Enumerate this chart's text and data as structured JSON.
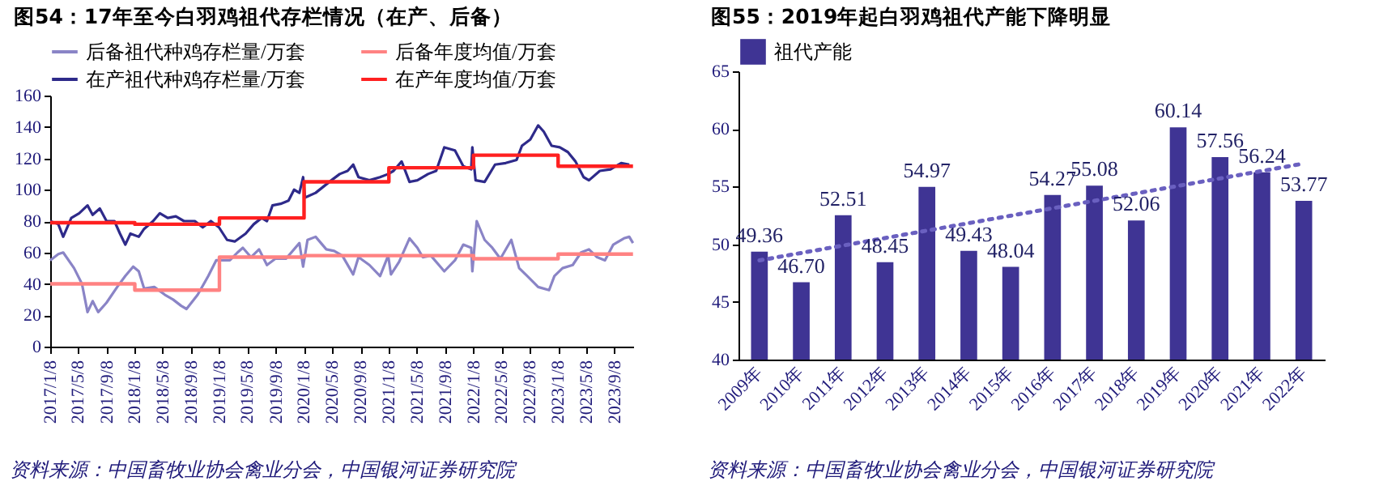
{
  "chart_data": [
    {
      "type": "line",
      "title": "图54：17年至今白羽鸡祖代存栏情况（在产、后备）",
      "annotations": [
        "资料来源：中国畜牧业协会禽业分会，中国银河证券研究院"
      ],
      "xlim": [
        "2017-01-08",
        "2023-11-28"
      ],
      "xticks": [
        {
          "value": "2017-01-08",
          "label": "2017/1/8"
        },
        {
          "value": "2017-05-08",
          "label": "2017/5/8"
        },
        {
          "value": "2017-09-08",
          "label": "2017/9/8"
        },
        {
          "value": "2018-01-08",
          "label": "2018/1/8"
        },
        {
          "value": "2018-05-08",
          "label": "2018/5/8"
        },
        {
          "value": "2018-09-08",
          "label": "2018/9/8"
        },
        {
          "value": "2019-01-08",
          "label": "2019/1/8"
        },
        {
          "value": "2019-05-08",
          "label": "2019/5/8"
        },
        {
          "value": "2019-09-08",
          "label": "2019/9/8"
        },
        {
          "value": "2020-01-08",
          "label": "2020/1/8"
        },
        {
          "value": "2020-05-08",
          "label": "2020/5/8"
        },
        {
          "value": "2020-09-08",
          "label": "2020/9/8"
        },
        {
          "value": "2021-01-08",
          "label": "2021/1/8"
        },
        {
          "value": "2021-05-08",
          "label": "2021/5/8"
        },
        {
          "value": "2021-09-08",
          "label": "2021/9/8"
        },
        {
          "value": "2022-01-08",
          "label": "2022/1/8"
        },
        {
          "value": "2022-05-08",
          "label": "2022/5/8"
        },
        {
          "value": "2022-09-08",
          "label": "2022/9/8"
        },
        {
          "value": "2023-01-08",
          "label": "2023/1/8"
        },
        {
          "value": "2023-05-08",
          "label": "2023/5/8"
        },
        {
          "value": "2023-09-08",
          "label": "2023/9/8"
        }
      ],
      "ylim": [
        0,
        160
      ],
      "yticks": [
        0,
        20,
        40,
        60,
        80,
        100,
        120,
        140,
        160
      ],
      "grid": false,
      "legend": "top",
      "series": [
        {
          "name": "后备祖代种鸡存栏量/万套",
          "color": "#8a84c6",
          "x": [
            "2017-01-08",
            "2017-02-12",
            "2017-03-05",
            "2017-04-21",
            "2017-05-25",
            "2017-06-18",
            "2017-07-10",
            "2017-08-03",
            "2017-09-08",
            "2017-10-24",
            "2017-11-28",
            "2018-01-01",
            "2018-01-25",
            "2018-02-17",
            "2018-04-02",
            "2018-05-18",
            "2018-06-22",
            "2018-07-27",
            "2018-08-19",
            "2018-10-06",
            "2018-11-21",
            "2018-12-25",
            "2019-01-18",
            "2019-02-22",
            "2019-03-27",
            "2019-04-19",
            "2019-05-24",
            "2019-06-28",
            "2019-08-01",
            "2019-09-06",
            "2019-10-22",
            "2019-12-19",
            "2020-01-04",
            "2020-01-23",
            "2020-02-27",
            "2020-04-13",
            "2020-05-17",
            "2020-06-21",
            "2020-08-07",
            "2020-08-30",
            "2020-10-16",
            "2020-12-01",
            "2021-01-05",
            "2021-01-17",
            "2021-02-21",
            "2021-04-07",
            "2021-05-11",
            "2021-06-03",
            "2021-07-08",
            "2021-09-04",
            "2021-10-20",
            "2021-11-25",
            "2021-12-29",
            "2022-01-03",
            "2022-01-22",
            "2022-02-25",
            "2022-03-30",
            "2022-05-04",
            "2022-06-20",
            "2022-07-24",
            "2022-08-28",
            "2022-10-14",
            "2022-11-30",
            "2022-12-23",
            "2023-01-27",
            "2023-03-12",
            "2023-04-17",
            "2023-05-21",
            "2023-06-25",
            "2023-07-29",
            "2023-09-03",
            "2023-10-19",
            "2023-11-11",
            "2023-11-27"
          ],
          "values": [
            55,
            59,
            60,
            50,
            40,
            22,
            29,
            22,
            28,
            38,
            45,
            51,
            48,
            37,
            38,
            33,
            30,
            26,
            24,
            33,
            45,
            55,
            55,
            55,
            60,
            63,
            57,
            62,
            52,
            56,
            56,
            66,
            51,
            68,
            70,
            62,
            61,
            58,
            46,
            57,
            52,
            45,
            58,
            46,
            54,
            69,
            63,
            57,
            58,
            48,
            55,
            65,
            63,
            48,
            80,
            68,
            63,
            56,
            68,
            50,
            45,
            38,
            36,
            45,
            50,
            52,
            60,
            62,
            57,
            55,
            65,
            69,
            70,
            66
          ]
        },
        {
          "name": "后备年度均值/万套",
          "type": "step",
          "color": "#ff8282",
          "x": [
            "2017-01-08",
            "2018-01-08",
            "2019-01-08",
            "2020-01-08",
            "2021-01-08",
            "2022-01-08",
            "2023-01-08",
            "2023-11-27"
          ],
          "values": [
            40,
            36,
            57,
            58,
            58,
            56,
            59,
            59
          ]
        },
        {
          "name": "在产祖代种鸡存栏量/万套",
          "color": "#2e2a8a",
          "x": [
            "2017-01-08",
            "2017-02-12",
            "2017-03-05",
            "2017-04-09",
            "2017-05-13",
            "2017-06-18",
            "2017-07-10",
            "2017-08-10",
            "2017-09-08",
            "2017-10-12",
            "2017-11-05",
            "2017-11-28",
            "2017-12-20",
            "2018-01-25",
            "2018-02-17",
            "2018-03-28",
            "2018-04-26",
            "2018-05-30",
            "2018-07-04",
            "2018-08-08",
            "2018-09-24",
            "2018-10-28",
            "2018-12-02",
            "2019-01-06",
            "2019-02-10",
            "2019-03-15",
            "2019-05-01",
            "2019-06-05",
            "2019-07-09",
            "2019-08-01",
            "2019-08-25",
            "2019-09-29",
            "2019-11-02",
            "2019-11-26",
            "2019-12-19",
            "2020-01-04",
            "2020-01-12",
            "2020-02-27",
            "2020-04-01",
            "2020-05-05",
            "2020-06-10",
            "2020-07-14",
            "2020-08-07",
            "2020-08-30",
            "2020-10-16",
            "2020-12-01",
            "2021-01-05",
            "2021-01-28",
            "2021-03-04",
            "2021-04-07",
            "2021-05-11",
            "2021-06-26",
            "2021-07-31",
            "2021-09-04",
            "2021-10-20",
            "2021-11-25",
            "2021-12-29",
            "2022-01-03",
            "2022-01-17",
            "2022-02-25",
            "2022-04-11",
            "2022-05-27",
            "2022-07-13",
            "2022-08-05",
            "2022-09-10",
            "2022-10-14",
            "2022-11-07",
            "2022-12-11",
            "2023-01-15",
            "2023-02-19",
            "2023-03-24",
            "2023-04-28",
            "2023-05-21",
            "2023-07-07",
            "2023-08-22",
            "2023-10-07",
            "2023-11-11"
          ],
          "values": [
            80,
            78,
            70,
            82,
            85,
            90,
            84,
            88,
            80,
            80,
            72,
            65,
            72,
            70,
            75,
            80,
            85,
            82,
            83,
            80,
            80,
            76,
            80,
            76,
            68,
            67,
            72,
            78,
            82,
            80,
            90,
            91,
            93,
            100,
            98,
            108,
            95,
            98,
            102,
            106,
            110,
            112,
            116,
            108,
            106,
            108,
            110,
            112,
            118,
            105,
            106,
            110,
            112,
            127,
            125,
            115,
            113,
            127,
            106,
            105,
            116,
            117,
            119,
            128,
            132,
            141,
            137,
            128,
            127,
            124,
            118,
            108,
            106,
            112,
            113,
            117,
            116
          ]
        },
        {
          "name": "在产年度均值/万套",
          "type": "step",
          "color": "#ff2020",
          "x": [
            "2017-01-08",
            "2018-01-08",
            "2019-01-08",
            "2020-01-08",
            "2021-01-08",
            "2022-01-08",
            "2023-01-08",
            "2023-11-27"
          ],
          "values": [
            79,
            78,
            82,
            105,
            114,
            122,
            115,
            115
          ]
        }
      ]
    },
    {
      "type": "bar",
      "title": "图55：2019年起白羽鸡祖代产能下降明显",
      "annotations": [
        "资料来源：中国畜牧业协会禽业分会，中国银河证券研究院"
      ],
      "categories": [
        "2009年",
        "2010年",
        "2011年",
        "2012年",
        "2013年",
        "2014年",
        "2015年",
        "2016年",
        "2017年",
        "2018年",
        "2019年",
        "2020年",
        "2021年",
        "2022年"
      ],
      "ylim": [
        40,
        65
      ],
      "yticks": [
        40,
        45,
        50,
        55,
        60,
        65
      ],
      "grid": false,
      "legend": "top",
      "series": [
        {
          "name": "祖代产能",
          "color": "#3f3494",
          "values": [
            49.36,
            46.7,
            52.51,
            48.45,
            54.97,
            49.43,
            48.04,
            54.27,
            55.08,
            52.06,
            60.14,
            57.56,
            56.24,
            53.77
          ],
          "value_labels": [
            "49.36",
            "46.70",
            "52.51",
            "48.45",
            "54.97",
            "49.43",
            "48.04",
            "54.27",
            "55.08",
            "52.06",
            "60.14",
            "57.56",
            "56.24",
            "53.77"
          ]
        },
        {
          "type": "line",
          "color": "#6a60c0",
          "line_style": "dotted",
          "marker": "none",
          "x": [
            "2009年",
            "2022年"
          ],
          "values": [
            48.6,
            57.0
          ]
        }
      ]
    }
  ]
}
